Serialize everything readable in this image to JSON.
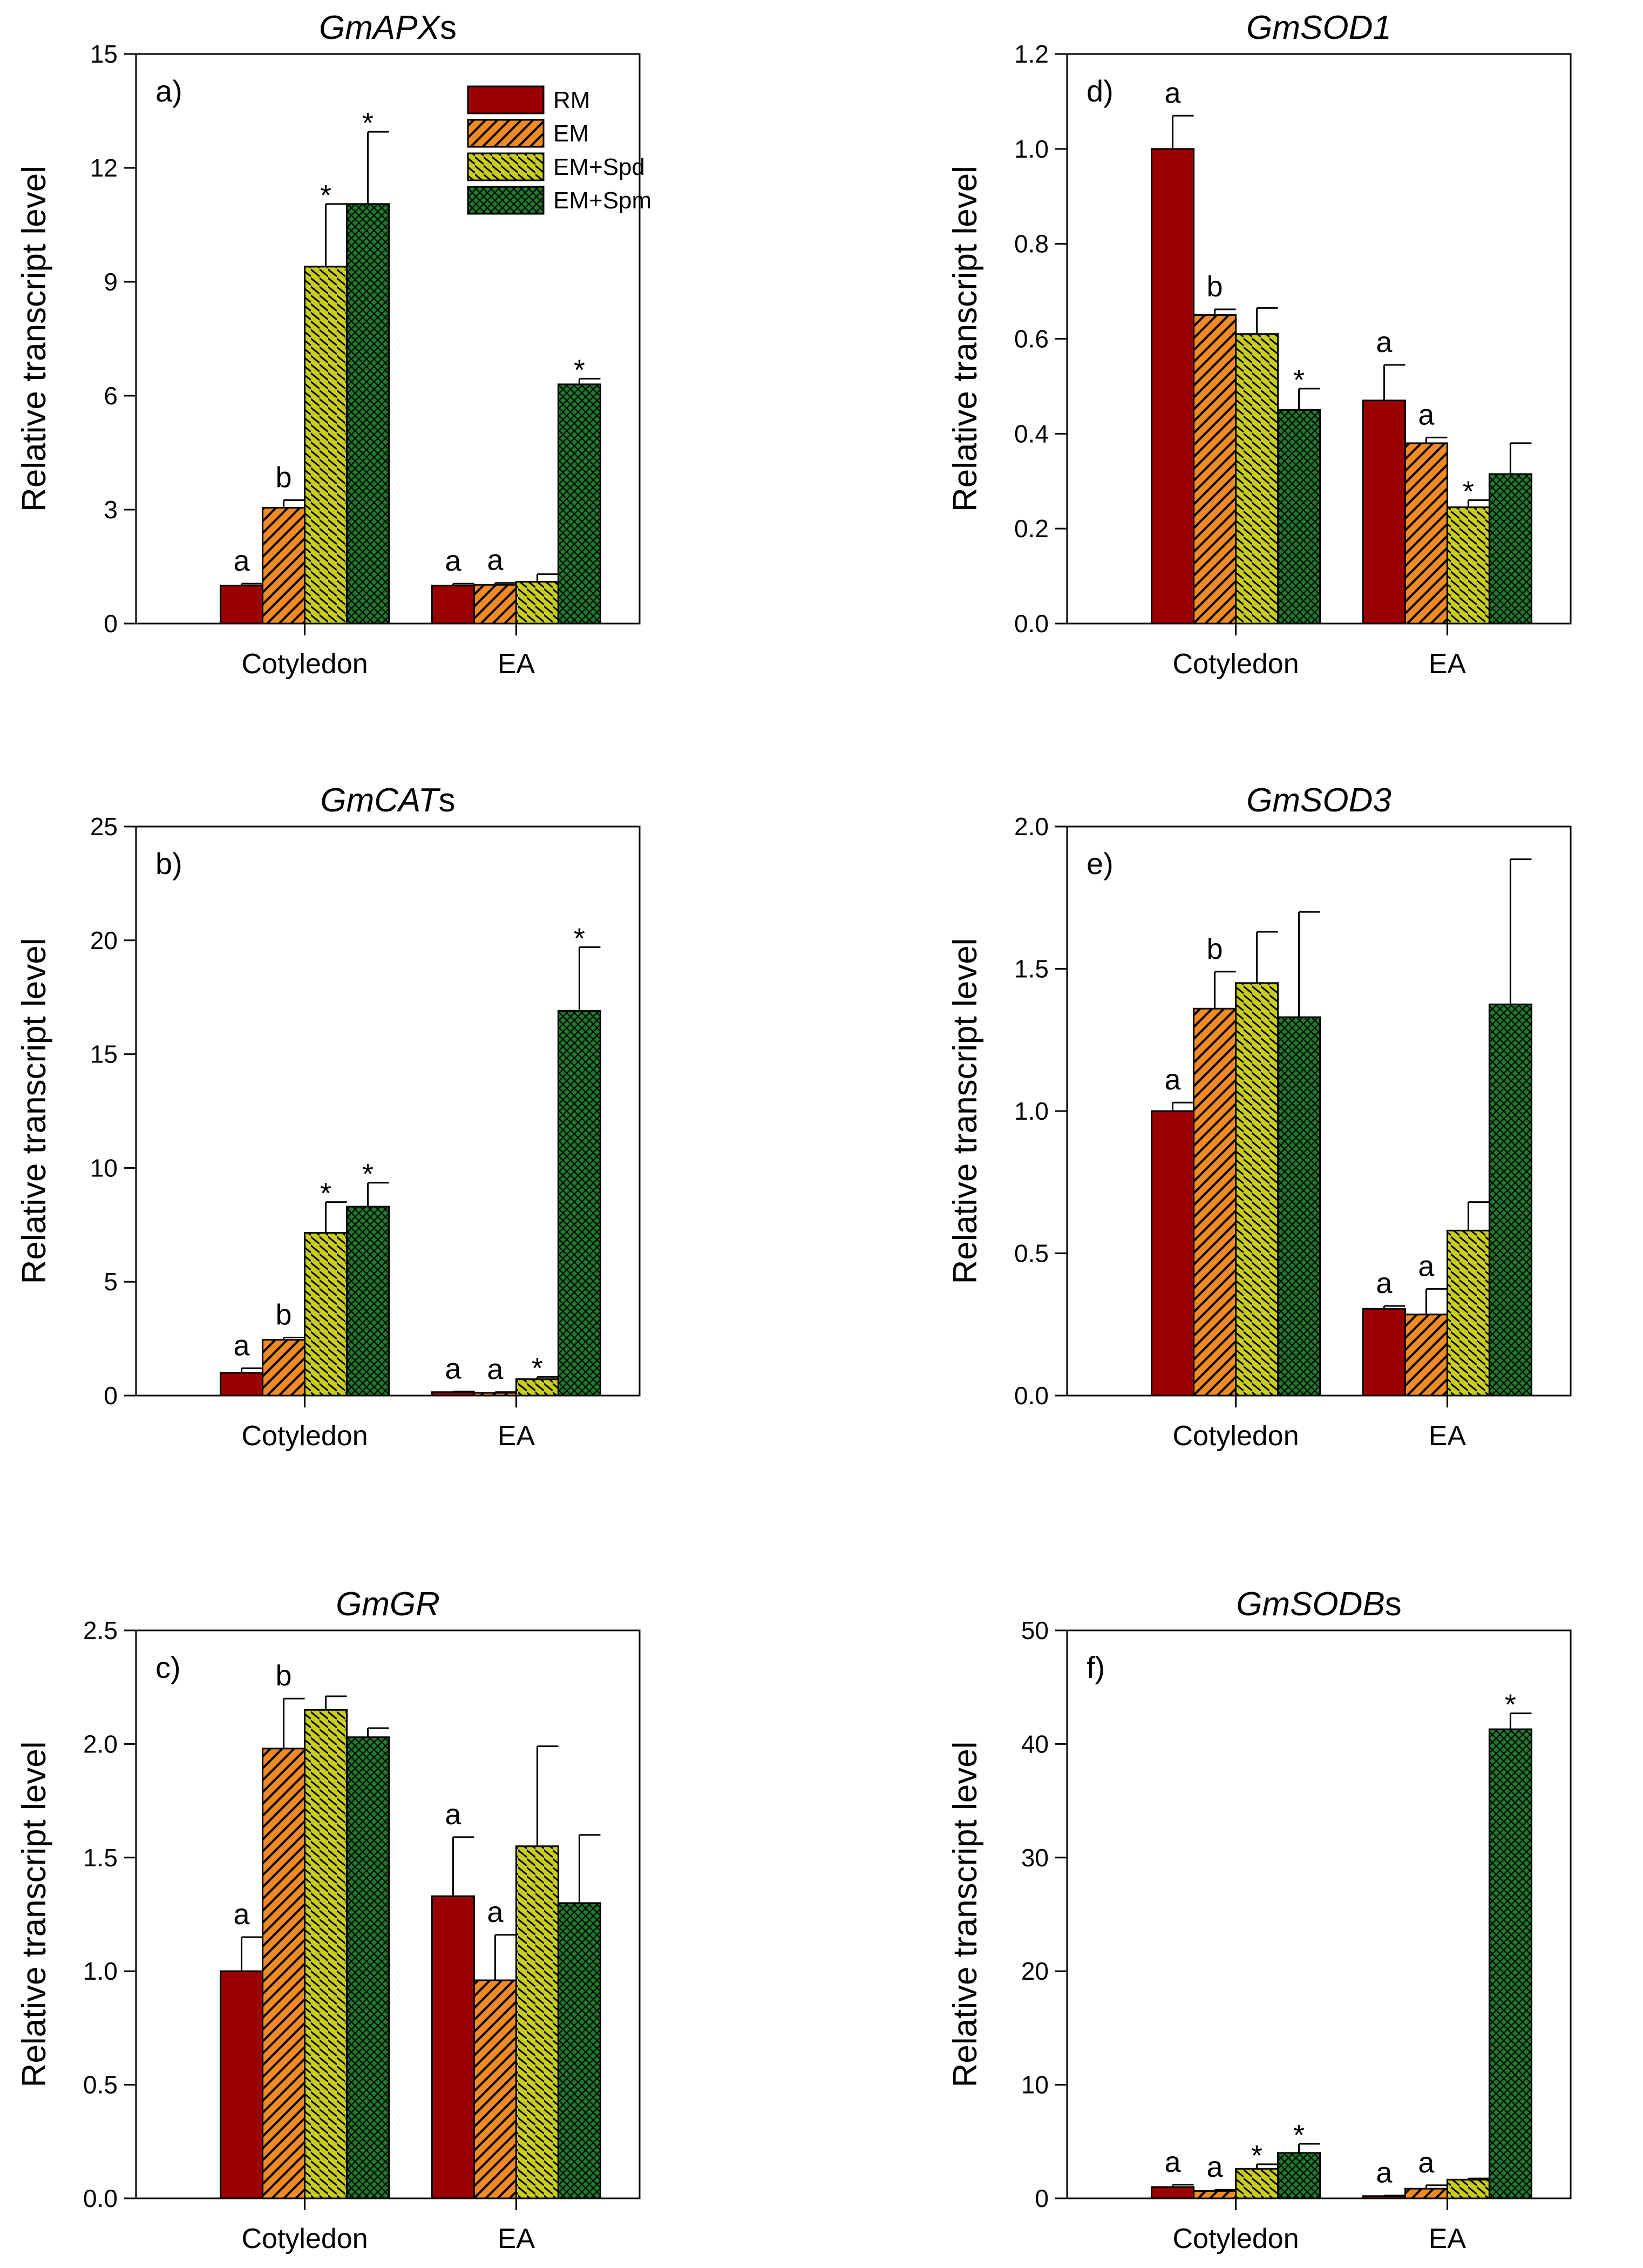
{
  "figure": {
    "ylabel": "Relative transcript level",
    "legend": {
      "placement": "top-right of panel a",
      "entries": [
        {
          "label": "RM",
          "color": "#9b0000",
          "pattern": "solid"
        },
        {
          "label": "EM",
          "color": "#f08a24",
          "pattern": "diagonal"
        },
        {
          "label": "EM+Spd",
          "color": "#c8cc1a",
          "pattern": "diagonal-dense"
        },
        {
          "label": "EM+Spm",
          "color": "#1e7a2c",
          "pattern": "crosshatch"
        }
      ]
    }
  },
  "chart_data": [
    {
      "type": "bar",
      "panel": "a)",
      "title_italic": "GmAPX",
      "title_suffix": "s",
      "categories": [
        "Cotyledon",
        "EA"
      ],
      "ylim": [
        0,
        15
      ],
      "yticks": [
        0,
        3,
        6,
        9,
        12,
        15
      ],
      "yticklabels": [
        "0",
        "3",
        "6",
        "9",
        "12",
        "15"
      ],
      "show_legend": true,
      "series": [
        {
          "name": "RM",
          "values": [
            1.0,
            1.0
          ],
          "errors": [
            0.05,
            0.05
          ],
          "annotations": [
            "a",
            "a"
          ]
        },
        {
          "name": "EM",
          "values": [
            3.05,
            1.02
          ],
          "errors": [
            0.2,
            0.05
          ],
          "annotations": [
            "b",
            "a"
          ]
        },
        {
          "name": "EM+Spd",
          "values": [
            9.4,
            1.1
          ],
          "errors": [
            1.65,
            0.2
          ],
          "annotations": [
            "*",
            ""
          ]
        },
        {
          "name": "EM+Spm",
          "values": [
            11.05,
            6.3
          ],
          "errors": [
            1.9,
            0.15
          ],
          "annotations": [
            "*",
            "*"
          ]
        }
      ]
    },
    {
      "type": "bar",
      "panel": "b)",
      "title_italic": "GmCAT",
      "title_suffix": "s",
      "categories": [
        "Cotyledon",
        "EA"
      ],
      "ylim": [
        0,
        25
      ],
      "yticks": [
        0,
        5,
        10,
        15,
        20,
        25
      ],
      "yticklabels": [
        "0",
        "5",
        "10",
        "15",
        "20",
        "25"
      ],
      "series": [
        {
          "name": "RM",
          "values": [
            1.0,
            0.15
          ],
          "errors": [
            0.2,
            0.03
          ],
          "annotations": [
            "a",
            "a"
          ]
        },
        {
          "name": "EM",
          "values": [
            2.45,
            0.12
          ],
          "errors": [
            0.1,
            0.03
          ],
          "annotations": [
            "b",
            "a"
          ]
        },
        {
          "name": "EM+Spd",
          "values": [
            7.15,
            0.72
          ],
          "errors": [
            1.35,
            0.1
          ],
          "annotations": [
            "*",
            "*"
          ]
        },
        {
          "name": "EM+Spm",
          "values": [
            8.3,
            16.9
          ],
          "errors": [
            1.05,
            2.8
          ],
          "annotations": [
            "*",
            "*"
          ]
        }
      ]
    },
    {
      "type": "bar",
      "panel": "c)",
      "title_italic": "GmGR",
      "title_suffix": "",
      "categories": [
        "Cotyledon",
        "EA"
      ],
      "ylim": [
        0,
        2.5
      ],
      "yticks": [
        0,
        0.5,
        1.0,
        1.5,
        2.0,
        2.5
      ],
      "yticklabels": [
        "0.0",
        "0.5",
        "1.0",
        "1.5",
        "2.0",
        "2.5"
      ],
      "series": [
        {
          "name": "RM",
          "values": [
            1.0,
            1.33
          ],
          "errors": [
            0.15,
            0.26
          ],
          "annotations": [
            "a",
            "a"
          ]
        },
        {
          "name": "EM",
          "values": [
            1.98,
            0.96
          ],
          "errors": [
            0.22,
            0.2
          ],
          "annotations": [
            "b",
            "a"
          ]
        },
        {
          "name": "EM+Spd",
          "values": [
            2.15,
            1.55
          ],
          "errors": [
            0.06,
            0.44
          ],
          "annotations": [
            "",
            ""
          ]
        },
        {
          "name": "EM+Spm",
          "values": [
            2.03,
            1.3
          ],
          "errors": [
            0.04,
            0.3
          ],
          "annotations": [
            "",
            ""
          ]
        }
      ]
    },
    {
      "type": "bar",
      "panel": "d)",
      "title_italic": "GmSOD1",
      "title_suffix": "",
      "categories": [
        "Cotyledon",
        "EA"
      ],
      "ylim": [
        0,
        1.2
      ],
      "yticks": [
        0,
        0.2,
        0.4,
        0.6,
        0.8,
        1.0,
        1.2
      ],
      "yticklabels": [
        "0.0",
        "0.2",
        "0.4",
        "0.6",
        "0.8",
        "1.0",
        "1.2"
      ],
      "series": [
        {
          "name": "RM",
          "values": [
            1.0,
            0.47
          ],
          "errors": [
            0.07,
            0.075
          ],
          "annotations": [
            "a",
            "a"
          ]
        },
        {
          "name": "EM",
          "values": [
            0.65,
            0.38
          ],
          "errors": [
            0.012,
            0.012
          ],
          "annotations": [
            "b",
            "a"
          ]
        },
        {
          "name": "EM+Spd",
          "values": [
            0.61,
            0.245
          ],
          "errors": [
            0.055,
            0.015
          ],
          "annotations": [
            "",
            "*"
          ]
        },
        {
          "name": "EM+Spm",
          "values": [
            0.45,
            0.315
          ],
          "errors": [
            0.045,
            0.065
          ],
          "annotations": [
            "*",
            ""
          ]
        }
      ]
    },
    {
      "type": "bar",
      "panel": "e)",
      "title_italic": "GmSOD3",
      "title_suffix": "",
      "categories": [
        "Cotyledon",
        "EA"
      ],
      "ylim": [
        0,
        2.0
      ],
      "yticks": [
        0,
        0.5,
        1.0,
        1.5,
        2.0
      ],
      "yticklabels": [
        "0.0",
        "0.5",
        "1.0",
        "1.5",
        "2.0"
      ],
      "series": [
        {
          "name": "RM",
          "values": [
            1.0,
            0.305
          ],
          "errors": [
            0.03,
            0.01
          ],
          "annotations": [
            "a",
            "a"
          ]
        },
        {
          "name": "EM",
          "values": [
            1.36,
            0.285
          ],
          "errors": [
            0.13,
            0.09
          ],
          "annotations": [
            "b",
            "a"
          ]
        },
        {
          "name": "EM+Spd",
          "values": [
            1.45,
            0.58
          ],
          "errors": [
            0.18,
            0.1
          ],
          "annotations": [
            "",
            ""
          ]
        },
        {
          "name": "EM+Spm",
          "values": [
            1.33,
            1.375
          ],
          "errors": [
            0.37,
            0.51
          ],
          "annotations": [
            "",
            ""
          ]
        }
      ]
    },
    {
      "type": "bar",
      "panel": "f)",
      "title_italic": "GmSODB",
      "title_suffix": "s",
      "categories": [
        "Cotyledon",
        "EA"
      ],
      "ylim": [
        0,
        50
      ],
      "yticks": [
        0,
        10,
        20,
        30,
        40,
        50
      ],
      "yticklabels": [
        "0",
        "10",
        "20",
        "30",
        "40",
        "50"
      ],
      "series": [
        {
          "name": "RM",
          "values": [
            1.0,
            0.2
          ],
          "errors": [
            0.2,
            0.05
          ],
          "annotations": [
            "a",
            "a"
          ]
        },
        {
          "name": "EM",
          "values": [
            0.65,
            0.85
          ],
          "errors": [
            0.1,
            0.3
          ],
          "annotations": [
            "a",
            "a"
          ]
        },
        {
          "name": "EM+Spd",
          "values": [
            2.6,
            1.65
          ],
          "errors": [
            0.4,
            0.1
          ],
          "annotations": [
            "*",
            ""
          ]
        },
        {
          "name": "EM+Spm",
          "values": [
            4.0,
            41.3
          ],
          "errors": [
            0.8,
            1.4
          ],
          "annotations": [
            "*",
            "*"
          ]
        }
      ]
    }
  ]
}
